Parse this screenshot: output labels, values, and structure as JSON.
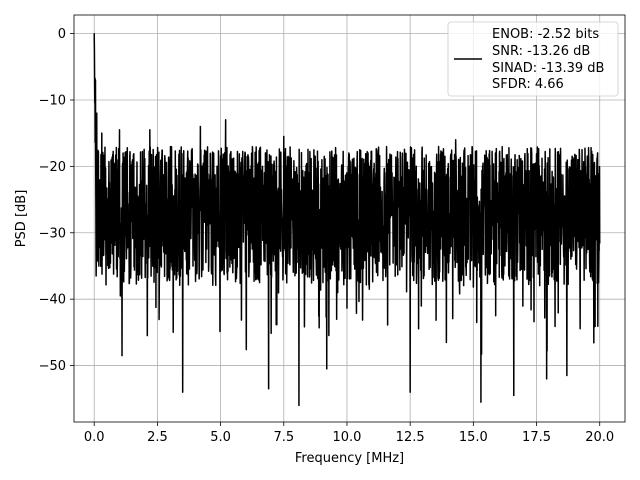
{
  "chart_data": {
    "type": "line",
    "title": "",
    "xlabel": "Frequency [MHz]",
    "ylabel": "PSD [dB]",
    "xlim": [
      -0.8,
      21.0
    ],
    "ylim": [
      -58.5,
      2.8
    ],
    "grid": true,
    "xticks": [
      0.0,
      2.5,
      5.0,
      7.5,
      10.0,
      12.5,
      15.0,
      17.5,
      20.0
    ],
    "xtick_labels": [
      "0.0",
      "2.5",
      "5.0",
      "7.5",
      "10.0",
      "12.5",
      "15.0",
      "17.5",
      "20.0"
    ],
    "yticks": [
      0,
      -10,
      -20,
      -30,
      -40,
      -50
    ],
    "ytick_labels": [
      "0",
      "−10",
      "−20",
      "−30",
      "−40",
      "−50"
    ],
    "series": [
      {
        "name": "ENOB: -2.52 bits\nSNR: -13.26 dB\nSINAD: -13.39 dB\nSFDR: 4.66",
        "color": "#000000",
        "x_start": 0.0,
        "x_end": 20.0,
        "peak": {
          "x": 0.0,
          "y": 0.0
        },
        "typical_range": [
          -38.0,
          -17.0
        ],
        "local_maxima": [
          {
            "x": 0.05,
            "y": -7.0
          },
          {
            "x": 0.1,
            "y": -12.0
          },
          {
            "x": 0.3,
            "y": -15.0
          },
          {
            "x": 1.0,
            "y": -14.5
          },
          {
            "x": 2.2,
            "y": -14.5
          },
          {
            "x": 4.2,
            "y": -14.0
          },
          {
            "x": 5.2,
            "y": -13.0
          },
          {
            "x": 7.5,
            "y": -15.5
          },
          {
            "x": 14.3,
            "y": -16.0
          },
          {
            "x": 19.3,
            "y": -17.5
          }
        ],
        "local_minima": [
          {
            "x": 3.5,
            "y": -54.0
          },
          {
            "x": 6.9,
            "y": -53.5
          },
          {
            "x": 8.1,
            "y": -56.0
          },
          {
            "x": 12.5,
            "y": -54.0
          },
          {
            "x": 15.3,
            "y": -55.5
          },
          {
            "x": 16.6,
            "y": -54.5
          },
          {
            "x": 1.1,
            "y": -48.5
          },
          {
            "x": 9.2,
            "y": -50.5
          },
          {
            "x": 17.9,
            "y": -52.0
          },
          {
            "x": 18.7,
            "y": -51.5
          }
        ]
      }
    ],
    "legend": {
      "placement": "upper right",
      "entries": [
        "ENOB: -2.52 bits",
        "SNR: -13.26 dB",
        "SINAD: -13.39 dB",
        "SFDR: 4.66"
      ]
    }
  }
}
